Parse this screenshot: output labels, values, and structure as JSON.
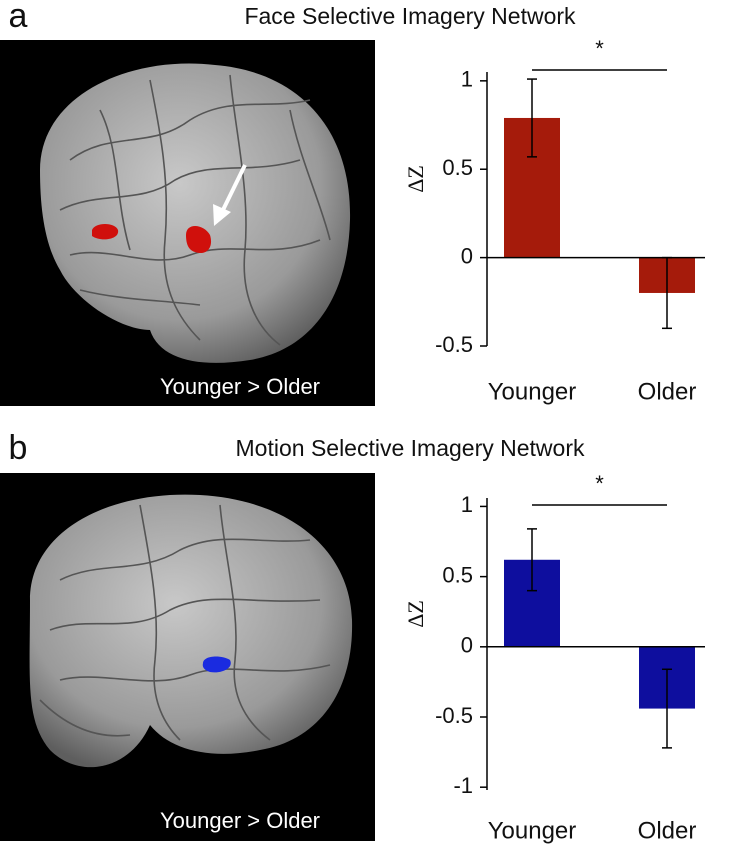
{
  "chart_data": [
    {
      "type": "bar",
      "panel": "a",
      "title": "Face Selective Imagery Network",
      "annotation": "Younger > Older",
      "significance": "*",
      "ylabel": "ΔZ",
      "categories": [
        "Younger",
        "Older"
      ],
      "values": [
        0.79,
        -0.2
      ],
      "errors": [
        0.22,
        0.2
      ],
      "color": "#a51b0b",
      "ylim": [
        -0.5,
        1.05
      ],
      "yticks": [
        1,
        0.5,
        0,
        -0.5
      ]
    },
    {
      "type": "bar",
      "panel": "b",
      "title": "Motion Selective Imagery Network",
      "annotation": "Younger > Older",
      "significance": "*",
      "ylabel": "ΔZ",
      "categories": [
        "Younger",
        "Older"
      ],
      "values": [
        0.62,
        -0.44
      ],
      "errors": [
        0.22,
        0.28
      ],
      "color": "#0e0e9e",
      "ylim": [
        -1.02,
        1.06
      ],
      "yticks": [
        1,
        0.5,
        0,
        -0.5,
        -1
      ]
    }
  ]
}
